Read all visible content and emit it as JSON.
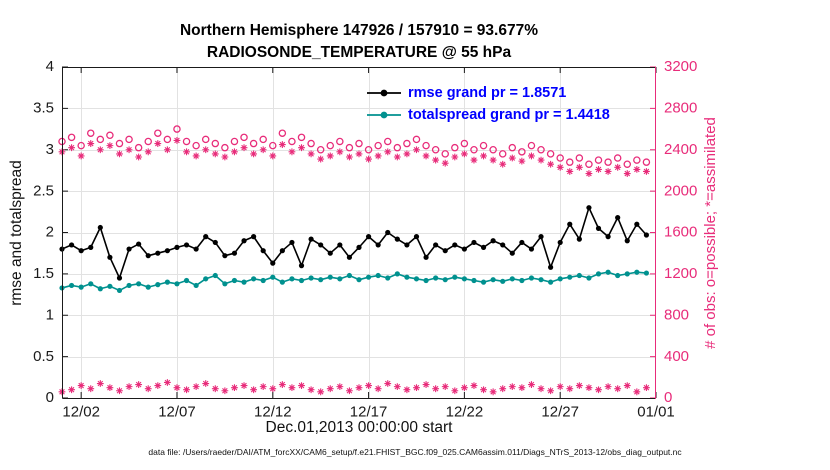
{
  "caption": "data file: /Users/raeder/DAI/ATM_forcXX/CAM6_setup/f.e21.FHIST_BGC.f09_025.CAM6assim.011/Diags_NTrS_2013-12/obs_diag_output.nc",
  "chart_data": {
    "type": "line",
    "title": "Northern Hemisphere 147926 / 157910 = 93.677%",
    "subtitle": "RADIOSONDE_TEMPERATURE @ 55 hPa",
    "xlabel": "Dec.01,2013 00:00:00 start",
    "ylabel_left": "rmse and totalspread",
    "ylabel_right": "# of obs: o=possible; *=assimilated",
    "x_range": [
      1,
      32
    ],
    "x_ticks": {
      "days": [
        2,
        7,
        12,
        17,
        22,
        27,
        32
      ],
      "labels": [
        "12/02",
        "12/07",
        "12/12",
        "12/17",
        "12/22",
        "12/27",
        "01/01"
      ]
    },
    "ylim_left": [
      0,
      4
    ],
    "yticks_left": [
      0,
      0.5,
      1,
      1.5,
      2,
      2.5,
      3,
      3.5,
      4
    ],
    "ylim_right": [
      0,
      3200
    ],
    "yticks_right": [
      0,
      400,
      800,
      1200,
      1600,
      2000,
      2400,
      2800,
      3200
    ],
    "grid": true,
    "legend_position": "top-center",
    "colors": {
      "rmse": "#000000",
      "totalspread": "#00918f",
      "obs_pink": "#e82c7a",
      "legend_text_blue": "#0000ff",
      "grid": "#e2e2e2"
    },
    "legend": [
      {
        "label": "rmse grand pr = 1.8571",
        "sample_color": "#000000",
        "text_color": "#0000ff",
        "marker": "dot"
      },
      {
        "label": "totalspread grand pr = 1.4418",
        "sample_color": "#00918f",
        "text_color": "#0000ff",
        "marker": "dot"
      }
    ],
    "x_days": [
      1,
      1.5,
      2,
      2.5,
      3,
      3.5,
      4,
      4.5,
      5,
      5.5,
      6,
      6.5,
      7,
      7.5,
      8,
      8.5,
      9,
      9.5,
      10,
      10.5,
      11,
      11.5,
      12,
      12.5,
      13,
      13.5,
      14,
      14.5,
      15,
      15.5,
      16,
      16.5,
      17,
      17.5,
      18,
      18.5,
      19,
      19.5,
      20,
      20.5,
      21,
      21.5,
      22,
      22.5,
      23,
      23.5,
      24,
      24.5,
      25,
      25.5,
      26,
      26.5,
      27,
      27.5,
      28,
      28.5,
      29,
      29.5,
      30,
      30.5,
      31,
      31.5
    ],
    "series": [
      {
        "name": "obs_possible",
        "axis": "right",
        "marker": "circle",
        "line": false,
        "color": "#e82c7a",
        "values": [
          2480,
          2520,
          2440,
          2560,
          2500,
          2540,
          2460,
          2500,
          2420,
          2480,
          2560,
          2500,
          2600,
          2480,
          2440,
          2500,
          2460,
          2420,
          2480,
          2520,
          2460,
          2500,
          2440,
          2560,
          2480,
          2520,
          2460,
          2400,
          2440,
          2480,
          2420,
          2460,
          2400,
          2440,
          2480,
          2420,
          2460,
          2500,
          2440,
          2400,
          2360,
          2420,
          2460,
          2400,
          2440,
          2400,
          2360,
          2420,
          2380,
          2440,
          2400,
          2360,
          2320,
          2280,
          2320,
          2260,
          2300,
          2280,
          2320,
          2260,
          2300,
          2280
        ]
      },
      {
        "name": "obs_assimilated",
        "axis": "right",
        "marker": "asterisk",
        "line": false,
        "color": "#e82c7a",
        "values": [
          2380,
          2420,
          2340,
          2460,
          2400,
          2440,
          2360,
          2400,
          2330,
          2380,
          2460,
          2400,
          2490,
          2380,
          2340,
          2400,
          2360,
          2330,
          2380,
          2420,
          2360,
          2400,
          2340,
          2450,
          2380,
          2420,
          2360,
          2310,
          2340,
          2380,
          2330,
          2360,
          2310,
          2340,
          2380,
          2330,
          2360,
          2400,
          2340,
          2300,
          2270,
          2330,
          2360,
          2300,
          2340,
          2300,
          2260,
          2320,
          2290,
          2340,
          2300,
          2260,
          2230,
          2190,
          2230,
          2170,
          2210,
          2190,
          2230,
          2170,
          2210,
          2190
        ]
      },
      {
        "name": "obs_bottom_markers",
        "axis": "right",
        "marker": "asterisk",
        "line": false,
        "color": "#e82c7a",
        "values": [
          60,
          80,
          120,
          90,
          140,
          100,
          70,
          110,
          130,
          90,
          120,
          150,
          100,
          80,
          110,
          140,
          90,
          70,
          100,
          120,
          80,
          110,
          90,
          130,
          100,
          120,
          80,
          60,
          90,
          110,
          70,
          100,
          120,
          90,
          140,
          110,
          80,
          100,
          130,
          90,
          110,
          70,
          100,
          120,
          80,
          60,
          90,
          110,
          100,
          130,
          90,
          70,
          110,
          90,
          120,
          100,
          80,
          110,
          90,
          120,
          60,
          100
        ]
      },
      {
        "name": "totalspread",
        "axis": "left",
        "marker": "dot",
        "line": true,
        "color": "#00918f",
        "values": [
          1.33,
          1.36,
          1.34,
          1.38,
          1.32,
          1.35,
          1.3,
          1.36,
          1.38,
          1.34,
          1.37,
          1.4,
          1.38,
          1.42,
          1.36,
          1.44,
          1.48,
          1.38,
          1.42,
          1.4,
          1.44,
          1.42,
          1.46,
          1.4,
          1.44,
          1.42,
          1.45,
          1.43,
          1.46,
          1.44,
          1.48,
          1.43,
          1.46,
          1.48,
          1.45,
          1.5,
          1.46,
          1.44,
          1.42,
          1.45,
          1.43,
          1.46,
          1.44,
          1.42,
          1.4,
          1.43,
          1.41,
          1.44,
          1.42,
          1.45,
          1.43,
          1.4,
          1.44,
          1.46,
          1.48,
          1.45,
          1.5,
          1.52,
          1.48,
          1.5,
          1.52,
          1.51
        ]
      },
      {
        "name": "rmse",
        "axis": "left",
        "marker": "dot",
        "line": true,
        "color": "#000000",
        "values": [
          1.8,
          1.85,
          1.78,
          1.82,
          2.06,
          1.7,
          1.45,
          1.8,
          1.86,
          1.72,
          1.75,
          1.78,
          1.82,
          1.85,
          1.8,
          1.95,
          1.88,
          1.72,
          1.75,
          1.9,
          1.95,
          1.78,
          1.63,
          1.78,
          1.88,
          1.6,
          1.92,
          1.85,
          1.75,
          1.85,
          1.7,
          1.82,
          1.95,
          1.85,
          2.0,
          1.92,
          1.85,
          1.95,
          1.7,
          1.85,
          1.78,
          1.85,
          1.8,
          1.88,
          1.82,
          1.9,
          1.85,
          1.75,
          1.88,
          1.8,
          1.95,
          1.58,
          1.88,
          2.1,
          1.92,
          2.3,
          2.05,
          1.95,
          2.18,
          1.9,
          2.1,
          1.97
        ]
      }
    ]
  }
}
